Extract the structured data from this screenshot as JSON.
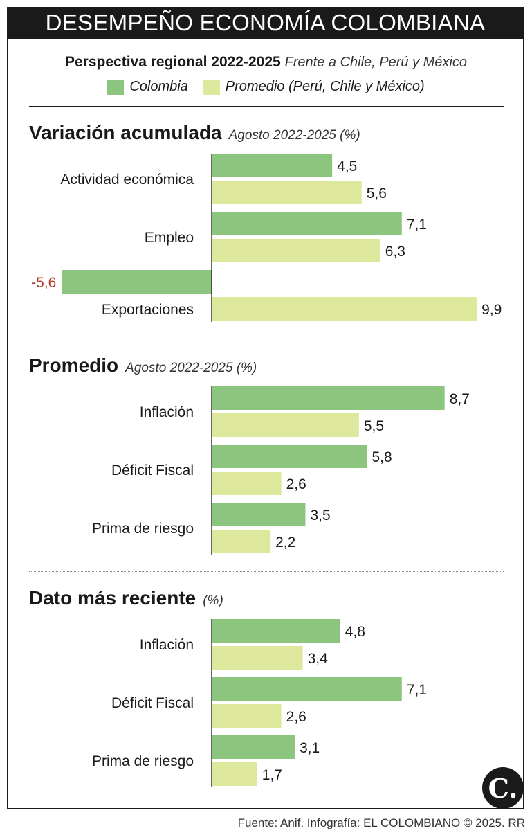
{
  "header": {
    "title": "DESEMPEÑO ECONOMÍA COLOMBIANA",
    "subtitle_bold": "Perspectiva regional 2022-2025",
    "subtitle_italic": "Frente a Chile, Perú y México"
  },
  "legend": {
    "colombia": "Colombia",
    "promedio": "Promedio (Perú, Chile y México)"
  },
  "colors": {
    "colombia": "#8cc67e",
    "promedio": "#dde89c",
    "negative_label": "#b23a2a",
    "dark": "#1a1a1a"
  },
  "chart_data": [
    {
      "type": "bar",
      "orientation": "horizontal",
      "title": "Variación acumulada",
      "subtitle": "Agosto 2022-2025 (%)",
      "categories": [
        "Actividad económica",
        "Empleo",
        "Exportaciones"
      ],
      "series": [
        {
          "name": "Colombia",
          "values": [
            4.5,
            7.1,
            -5.6
          ],
          "labels": [
            "4,5",
            "7,1",
            "-5,6"
          ]
        },
        {
          "name": "Promedio (Perú, Chile y México)",
          "values": [
            5.6,
            6.3,
            9.9
          ],
          "labels": [
            "5,6",
            "6,3",
            "9,9"
          ]
        }
      ]
    },
    {
      "type": "bar",
      "orientation": "horizontal",
      "title": "Promedio",
      "subtitle": "Agosto 2022-2025 (%)",
      "categories": [
        "Inflación",
        "Déficit Fiscal",
        "Prima de riesgo"
      ],
      "series": [
        {
          "name": "Colombia",
          "values": [
            8.7,
            5.8,
            3.5
          ],
          "labels": [
            "8,7",
            "5,8",
            "3,5"
          ]
        },
        {
          "name": "Promedio (Perú, Chile y México)",
          "values": [
            5.5,
            2.6,
            2.2
          ],
          "labels": [
            "5,5",
            "2,6",
            "2,2"
          ]
        }
      ]
    },
    {
      "type": "bar",
      "orientation": "horizontal",
      "title": "Dato más reciente",
      "subtitle": "(%)",
      "categories": [
        "Inflación",
        "Déficit Fiscal",
        "Prima de riesgo"
      ],
      "series": [
        {
          "name": "Colombia",
          "values": [
            4.8,
            7.1,
            3.1
          ],
          "labels": [
            "4,8",
            "7,1",
            "3,1"
          ]
        },
        {
          "name": "Promedio (Perú, Chile y México)",
          "values": [
            3.4,
            2.6,
            1.7
          ],
          "labels": [
            "3,4",
            "2,6",
            "1,7"
          ]
        }
      ]
    }
  ],
  "footer": {
    "source": "Fuente: Anif. Infografía: EL COLOMBIANO © 2025. RR",
    "logo_text": "C."
  }
}
